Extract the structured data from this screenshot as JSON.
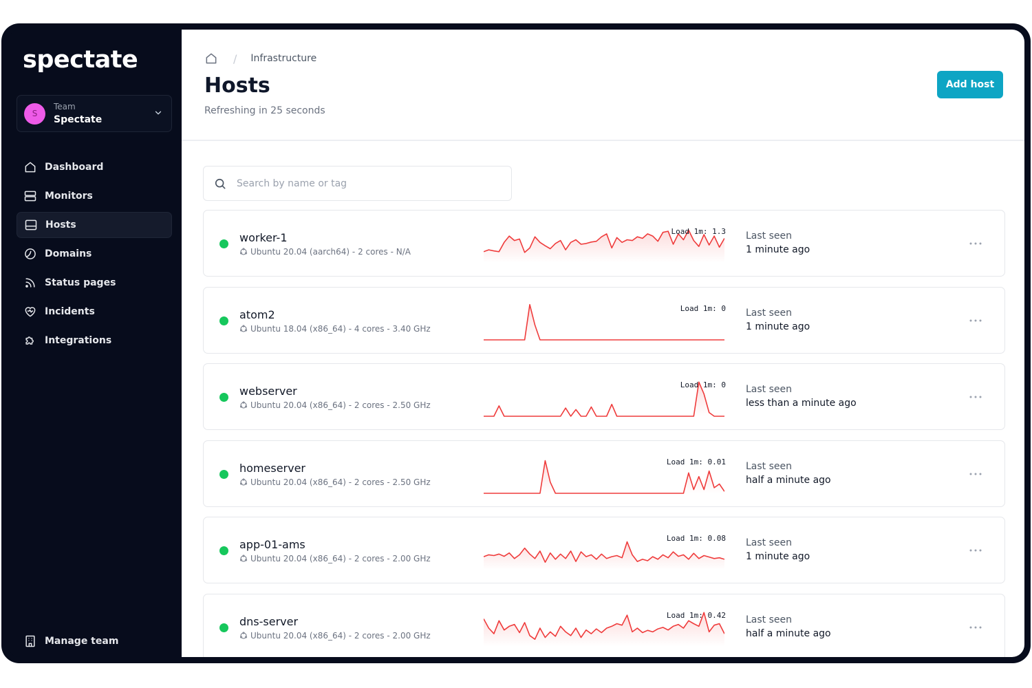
{
  "app": {
    "brand": "spectate"
  },
  "team": {
    "caption": "Team",
    "name": "Spectate",
    "avatar_letter": "S",
    "avatar_color": "#ee5be8"
  },
  "nav": [
    {
      "label": "Dashboard",
      "icon": "home-icon",
      "active": false
    },
    {
      "label": "Monitors",
      "icon": "server-icon",
      "active": false
    },
    {
      "label": "Hosts",
      "icon": "host-icon",
      "active": true
    },
    {
      "label": "Domains",
      "icon": "globe-icon",
      "active": false
    },
    {
      "label": "Status pages",
      "icon": "rss-icon",
      "active": false
    },
    {
      "label": "Incidents",
      "icon": "heart-pulse-icon",
      "active": false
    },
    {
      "label": "Integrations",
      "icon": "puzzle-icon",
      "active": false
    }
  ],
  "manage_team": {
    "label": "Manage team",
    "icon": "building-icon"
  },
  "header": {
    "breadcrumb": "Infrastructure",
    "title": "Hosts",
    "subtitle": "Refreshing in 25 seconds",
    "add_button": "Add host"
  },
  "search": {
    "placeholder": "Search by name or tag",
    "value": ""
  },
  "colors": {
    "accent": "#0ea5c4",
    "status_up": "#16c75c",
    "spark": "#ef3b3b",
    "sidebar_bg": "#070c1c"
  },
  "hosts": [
    {
      "name": "worker-1",
      "meta": "Ubuntu 20.04 (aarch64) - 2 cores - N/A",
      "load": "Load 1m: 1.3",
      "seen_label": "Last seen",
      "seen": "1 minute ago",
      "load_series": [
        0.3,
        0.35,
        0.32,
        0.3,
        0.55,
        0.72,
        0.6,
        0.64,
        0.28,
        0.4,
        0.7,
        0.55,
        0.46,
        0.38,
        0.52,
        0.6,
        0.35,
        0.55,
        0.62,
        0.5,
        0.52,
        0.56,
        0.58,
        0.7,
        0.78,
        0.4,
        0.68,
        0.55,
        0.62,
        0.6,
        0.7,
        0.66,
        0.78,
        0.72,
        0.58,
        0.82,
        0.85,
        0.5,
        0.78,
        0.62,
        0.88,
        0.6,
        0.44,
        0.76,
        0.48,
        0.72,
        0.42,
        0.66
      ]
    },
    {
      "name": "atom2",
      "meta": "Ubuntu 18.04 (x86_64) - 4 cores - 3.40 GHz",
      "load": "Load 1m: 0",
      "seen_label": "Last seen",
      "seen": "1 minute ago",
      "load_series": [
        0,
        0,
        0,
        0,
        0,
        0,
        0,
        0,
        0,
        0.95,
        0.4,
        0,
        0,
        0,
        0,
        0,
        0,
        0,
        0,
        0,
        0,
        0,
        0,
        0,
        0,
        0,
        0,
        0,
        0,
        0,
        0,
        0,
        0,
        0,
        0,
        0,
        0,
        0,
        0,
        0,
        0,
        0,
        0,
        0,
        0,
        0,
        0,
        0
      ]
    },
    {
      "name": "webserver",
      "meta": "Ubuntu 20.04 (x86_64) - 2 cores - 2.50 GHz",
      "load": "Load 1m: 0",
      "seen_label": "Last seen",
      "seen": "less than a minute ago",
      "load_series": [
        0,
        0,
        0,
        0.28,
        0,
        0,
        0,
        0,
        0,
        0,
        0,
        0,
        0,
        0,
        0,
        0,
        0.22,
        0,
        0.18,
        0,
        0,
        0.25,
        0,
        0,
        0,
        0.32,
        0,
        0,
        0,
        0,
        0,
        0,
        0,
        0,
        0,
        0,
        0,
        0,
        0,
        0,
        0,
        0,
        0.92,
        0.6,
        0.1,
        0,
        0,
        0
      ]
    },
    {
      "name": "homeserver",
      "meta": "Ubuntu 20.04 (x86_64) - 2 cores - 2.50 GHz",
      "load": "Load 1m: 0.01",
      "seen_label": "Last seen",
      "seen": "half a minute ago",
      "load_series": [
        0,
        0,
        0,
        0,
        0,
        0,
        0,
        0,
        0,
        0,
        0,
        0,
        0.88,
        0.3,
        0,
        0,
        0,
        0,
        0,
        0,
        0,
        0,
        0,
        0,
        0,
        0,
        0,
        0,
        0,
        0,
        0,
        0,
        0,
        0,
        0,
        0,
        0,
        0,
        0,
        0,
        0.55,
        0.1,
        0.45,
        0.1,
        0.6,
        0.15,
        0.25,
        0.05
      ]
    },
    {
      "name": "app-01-ams",
      "meta": "Ubuntu 20.04 (x86_64) - 2 cores - 2.00 GHz",
      "load": "Load 1m: 0.08",
      "seen_label": "Last seen",
      "seen": "1 minute ago",
      "load_series": [
        0.35,
        0.4,
        0.38,
        0.42,
        0.36,
        0.45,
        0.3,
        0.4,
        0.58,
        0.42,
        0.3,
        0.5,
        0.2,
        0.45,
        0.28,
        0.42,
        0.3,
        0.5,
        0.22,
        0.48,
        0.35,
        0.4,
        0.28,
        0.42,
        0.3,
        0.35,
        0.38,
        0.32,
        0.75,
        0.4,
        0.22,
        0.28,
        0.24,
        0.35,
        0.28,
        0.4,
        0.32,
        0.48,
        0.36,
        0.4,
        0.28,
        0.44,
        0.3,
        0.38,
        0.34,
        0.3,
        0.32,
        0.28
      ]
    },
    {
      "name": "dns-server",
      "meta": "Ubuntu 20.04 (x86_64) - 2 cores - 2.00 GHz",
      "load": "Load 1m: 0.42",
      "seen_label": "Last seen",
      "seen": "half a minute ago",
      "load_series": [
        0.75,
        0.5,
        0.35,
        0.7,
        0.45,
        0.55,
        0.6,
        0.38,
        0.65,
        0.3,
        0.2,
        0.5,
        0.25,
        0.4,
        0.28,
        0.55,
        0.4,
        0.3,
        0.5,
        0.25,
        0.45,
        0.35,
        0.48,
        0.38,
        0.5,
        0.55,
        0.62,
        0.58,
        0.85,
        0.4,
        0.5,
        0.38,
        0.44,
        0.4,
        0.48,
        0.52,
        0.45,
        0.55,
        0.6,
        0.5,
        0.7,
        0.62,
        0.55,
        0.92,
        0.4,
        0.58,
        0.62,
        0.35
      ]
    }
  ]
}
